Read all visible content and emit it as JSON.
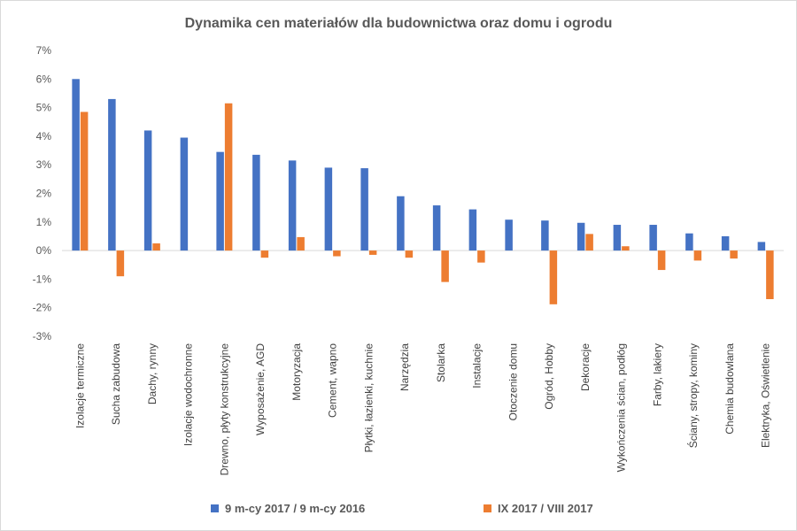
{
  "chart_data": {
    "type": "bar",
    "title": "Dynamika cen materiałów dla budownictwa oraz domu i ogrodu",
    "xlabel": "",
    "ylabel": "",
    "ylim": [
      -3,
      7
    ],
    "yticks": [
      -3,
      -2,
      -1,
      0,
      1,
      2,
      3,
      4,
      5,
      6,
      7
    ],
    "ytick_labels": [
      "-3%",
      "-2%",
      "-1%",
      "0%",
      "1%",
      "2%",
      "3%",
      "4%",
      "5%",
      "6%",
      "7%"
    ],
    "categories": [
      "Izolacje termiczne",
      "Sucha zabudowa",
      "Dachy, rynny",
      "Izolacje wodochronne",
      "Drewno, płyty konstrukcyjne",
      "Wyposażenie, AGD",
      "Motoryzacja",
      "Cement, wapno",
      "Płytki, łazienki, kuchnie",
      "Narzędzia",
      "Stolarka",
      "Instalacje",
      "Otoczenie domu",
      "Ogród, Hobby",
      "Dekoracje",
      "Wykończenia ścian, podłóg",
      "Farby, lakiery",
      "Ściany, stropy, kominy",
      "Chemia budowlana",
      "Elektryka, Oświetlenie"
    ],
    "series": [
      {
        "name": "9 m-cy 2017 / 9 m-cy 2016",
        "color": "#4472c4",
        "values": [
          6.0,
          5.3,
          4.2,
          3.95,
          3.45,
          3.35,
          3.15,
          2.9,
          2.88,
          1.9,
          1.58,
          1.44,
          1.08,
          1.05,
          0.97,
          0.9,
          0.9,
          0.6,
          0.5,
          0.3
        ]
      },
      {
        "name": "IX 2017 / VIII 2017",
        "color": "#ed7d31",
        "values": [
          4.85,
          -0.9,
          0.25,
          0.0,
          5.15,
          -0.25,
          0.47,
          -0.2,
          -0.15,
          -0.25,
          -1.1,
          -0.42,
          0.0,
          -1.88,
          0.58,
          0.15,
          -0.68,
          -0.35,
          -0.28,
          -1.7
        ]
      }
    ],
    "grid": false,
    "legend_position": "bottom"
  }
}
